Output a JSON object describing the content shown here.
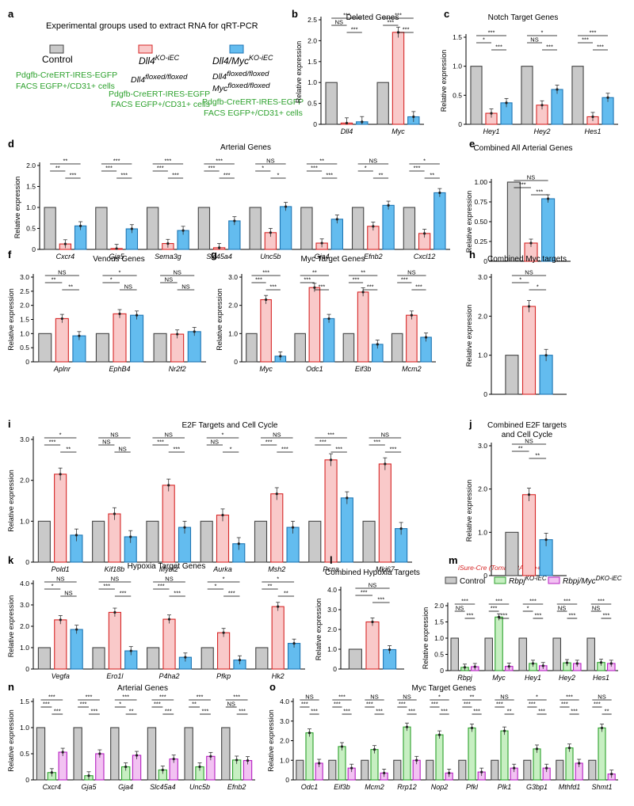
{
  "colors": {
    "control": "#c9c9c9",
    "ko": "#f9c9c9",
    "dko": "#63bcef",
    "rbpj": "#c7efc2",
    "rbpjmyc": "#f2c2f2",
    "stroke_control": "#444444",
    "stroke_ko": "#d62727",
    "stroke_dko": "#1f76b4",
    "stroke_rbpj": "#2ca12c",
    "stroke_rbpjmyc": "#b61fc2",
    "group_text": "#2ca12c",
    "cre_text": "#d62727"
  },
  "panel_a": {
    "letter": "a",
    "title": "Experimental groups used to extract RNA for qRT-PCR",
    "control_label": "Control",
    "control_lines": [
      "Pdgfb-CreERT-IRES-EGFP",
      "FACS EGFP+/CD31+ cells"
    ],
    "ko_label_main": "Dll4",
    "ko_label_sup": "KO-iEC",
    "ko_geno_main": "Dll4",
    "ko_geno_sup": "floxed/floxed",
    "ko_lines": [
      "Pdgfb-CreERT-IRES-EGFP",
      "FACS EGFP+/CD31+ cells"
    ],
    "dko_label_main": "Dll4/Myc",
    "dko_label_sup": "KO-iEC",
    "dko_geno1_main": "Dll4",
    "dko_geno1_sup": "floxed/floxed",
    "dko_geno2_main": "Myc",
    "dko_geno2_sup": "floxed/floxed",
    "dko_lines": [
      "Pdgfb-CreERT-IRES-EGFP",
      "FACS EGFP+/CD31+ cells"
    ]
  },
  "panel_m_legend": {
    "cre_note": "iSure-Cre (Tomato-2A-Cre+)",
    "control": "Control",
    "rbpj_main": "Rbpj",
    "rbpj_sup": "KO-iEC",
    "rbpjmyc_main": "Rbpj/Myc",
    "rbpjmyc_sup": "DKO-iEC"
  },
  "chart_data": [
    {
      "id": "b",
      "letter": "b",
      "type": "bar",
      "title": "Deleted Genes",
      "ylabel": "Relative expression",
      "ylim": [
        0,
        2.5
      ],
      "yticks": [
        "0",
        "0.5",
        "1.0",
        "1.5",
        "2.0",
        "2.5"
      ],
      "groups": "abc",
      "categories": [
        "Dll4",
        "Myc"
      ],
      "series": [
        {
          "name": "Control",
          "values": [
            1.0,
            1.0
          ]
        },
        {
          "name": "Dll4 KO-iEC",
          "values": [
            0.03,
            2.2
          ]
        },
        {
          "name": "Dll4/Myc KO-iEC",
          "values": [
            0.06,
            0.18
          ]
        }
      ],
      "sig": [
        [
          "***",
          "NS",
          "***"
        ],
        [
          "***",
          "***",
          "***"
        ]
      ]
    },
    {
      "id": "c",
      "letter": "c",
      "type": "bar",
      "title": "Notch Target Genes",
      "ylabel": "Relative expression",
      "ylim": [
        0,
        1.5
      ],
      "yticks": [
        "0",
        "0.5",
        "1.0",
        "1.5"
      ],
      "groups": "abc",
      "categories": [
        "Hey1",
        "Hey2",
        "Hes1"
      ],
      "series": [
        {
          "name": "Control",
          "values": [
            1.0,
            1.0,
            1.0
          ]
        },
        {
          "name": "Dll4 KO-iEC",
          "values": [
            0.19,
            0.33,
            0.13
          ]
        },
        {
          "name": "Dll4/Myc KO-iEC",
          "values": [
            0.37,
            0.6,
            0.46
          ]
        }
      ],
      "sig": [
        [
          "***",
          "*",
          "***"
        ],
        [
          "*",
          "NS",
          "***"
        ],
        [
          "***",
          "***",
          "***"
        ]
      ]
    },
    {
      "id": "d",
      "letter": "d",
      "type": "bar",
      "title": "Arterial Genes",
      "ylabel": "Relative expression",
      "ylim": [
        0,
        2.0
      ],
      "yticks": [
        "0",
        "0.5",
        "1.0",
        "1.5",
        "2.0"
      ],
      "groups": "abc",
      "categories": [
        "Cxcr4",
        "Gja5",
        "Sema3g",
        "Slc45a4",
        "Unc5b",
        "Gja4",
        "Efnb2",
        "Cxcl12"
      ],
      "series": [
        {
          "name": "Control",
          "values": [
            1,
            1,
            1,
            1,
            1,
            1,
            1,
            1
          ]
        },
        {
          "name": "Dll4 KO-iEC",
          "values": [
            0.13,
            0.02,
            0.14,
            0.04,
            0.4,
            0.15,
            0.55,
            0.38
          ]
        },
        {
          "name": "Dll4/Myc KO-iEC",
          "values": [
            0.56,
            0.49,
            0.45,
            0.68,
            1.02,
            0.72,
            1.05,
            1.35
          ]
        }
      ],
      "sig": [
        [
          "**",
          "**",
          "***"
        ],
        [
          "***",
          "***",
          "***"
        ],
        [
          "***",
          "***",
          "***"
        ],
        [
          "***",
          "***",
          "***"
        ],
        [
          "NS",
          "*",
          "*"
        ],
        [
          "**",
          "***",
          "***"
        ],
        [
          "NS",
          "*",
          "**"
        ],
        [
          "*",
          "***",
          "**"
        ]
      ]
    },
    {
      "id": "e",
      "letter": "e",
      "type": "bar",
      "title": "Combined All Arterial Genes",
      "ylabel": "Relative expression",
      "ylim": [
        0,
        1.0
      ],
      "yticks": [
        "0",
        "0.25",
        "0.50",
        "0.75",
        "1.00"
      ],
      "groups": "abc",
      "categories": [
        ""
      ],
      "series": [
        {
          "name": "Control",
          "values": [
            1.0
          ]
        },
        {
          "name": "Dll4 KO-iEC",
          "values": [
            0.23
          ]
        },
        {
          "name": "Dll4/Myc KO-iEC",
          "values": [
            0.79
          ]
        }
      ],
      "sig": [
        [
          "NS",
          "***",
          "***"
        ]
      ]
    },
    {
      "id": "f",
      "letter": "f",
      "type": "bar",
      "title": "Venous Genes",
      "ylabel": "Relative expression",
      "ylim": [
        0,
        3.0
      ],
      "yticks": [
        "0",
        "0.5",
        "1.0",
        "1.5",
        "2.0",
        "2.5",
        "3.0"
      ],
      "groups": "abc",
      "categories": [
        "Aplnr",
        "EphB4",
        "Nr2f2"
      ],
      "series": [
        {
          "name": "Control",
          "values": [
            1,
            1,
            1
          ]
        },
        {
          "name": "Dll4 KO-iEC",
          "values": [
            1.53,
            1.7,
            0.98
          ]
        },
        {
          "name": "Dll4/Myc KO-iEC",
          "values": [
            0.92,
            1.65,
            1.07
          ]
        }
      ],
      "sig": [
        [
          "NS",
          "**",
          "**"
        ],
        [
          "*",
          "*",
          "NS"
        ],
        [
          "NS",
          "NS",
          "NS"
        ]
      ]
    },
    {
      "id": "g",
      "letter": "g",
      "type": "bar",
      "title": "Myc Target Genes",
      "ylabel": "Relative expression",
      "ylim": [
        0,
        3.0
      ],
      "yticks": [
        "0",
        "1.0",
        "2.0",
        "3.0"
      ],
      "groups": "abc",
      "categories": [
        "Myc",
        "Odc1",
        "Eif3b",
        "Mcm2"
      ],
      "series": [
        {
          "name": "Control",
          "values": [
            1,
            1,
            1,
            1
          ]
        },
        {
          "name": "Dll4 KO-iEC",
          "values": [
            2.2,
            2.63,
            2.47,
            1.65
          ]
        },
        {
          "name": "Dll4/Myc KO-iEC",
          "values": [
            0.2,
            1.53,
            0.62,
            0.87
          ]
        }
      ],
      "sig": [
        [
          "***",
          "***",
          "***"
        ],
        [
          "**",
          "***",
          "***"
        ],
        [
          "**",
          "***",
          "***"
        ],
        [
          "NS",
          "***",
          "***"
        ]
      ]
    },
    {
      "id": "h",
      "letter": "h",
      "type": "bar",
      "title": "Combined Myc targets",
      "ylabel": "Relative expression",
      "ylim": [
        0,
        3.0
      ],
      "yticks": [
        "0",
        "1.0",
        "2.0",
        "3.0"
      ],
      "groups": "abc",
      "categories": [
        ""
      ],
      "series": [
        {
          "name": "Control",
          "values": [
            1.0
          ]
        },
        {
          "name": "Dll4 KO-iEC",
          "values": [
            2.25
          ]
        },
        {
          "name": "Dll4/Myc KO-iEC",
          "values": [
            1.0
          ]
        }
      ],
      "sig": [
        [
          "NS",
          "*",
          "*"
        ]
      ]
    },
    {
      "id": "i",
      "letter": "i",
      "type": "bar",
      "title": "E2F Targets and Cell Cycle",
      "ylabel": "Relative expression",
      "ylim": [
        0,
        3.0
      ],
      "yticks": [
        "0",
        "1.0",
        "2.0",
        "3.0"
      ],
      "groups": "abc",
      "categories": [
        "Pold1",
        "Kif18b",
        "Mybl2",
        "Aurka",
        "Msh2",
        "Pcna",
        "Mki67"
      ],
      "series": [
        {
          "name": "Control",
          "values": [
            1,
            1,
            1,
            1,
            1,
            1,
            1
          ]
        },
        {
          "name": "Dll4 KO-iEC",
          "values": [
            2.15,
            1.18,
            1.88,
            1.15,
            1.67,
            2.5,
            2.4
          ]
        },
        {
          "name": "Dll4/Myc KO-iEC",
          "values": [
            0.66,
            0.62,
            0.85,
            0.45,
            0.85,
            1.57,
            0.82
          ]
        }
      ],
      "sig": [
        [
          "*",
          "***",
          "**"
        ],
        [
          "NS",
          "NS",
          "NS"
        ],
        [
          "NS",
          "***",
          "***"
        ],
        [
          "*",
          "NS",
          "*"
        ],
        [
          "NS",
          "***",
          "***"
        ],
        [
          "***",
          "***",
          "***"
        ],
        [
          "NS",
          "***",
          "***"
        ]
      ]
    },
    {
      "id": "j",
      "letter": "j",
      "type": "bar",
      "title": "Combined E2F targets and Cell Cycle",
      "title_lines": [
        "Combined E2F targets",
        "and Cell Cycle"
      ],
      "ylabel": "Relative expression",
      "ylim": [
        0,
        3.0
      ],
      "yticks": [
        "0",
        "1.0",
        "2.0",
        "3.0"
      ],
      "groups": "abc",
      "categories": [
        ""
      ],
      "series": [
        {
          "name": "Control",
          "values": [
            1.0
          ]
        },
        {
          "name": "Dll4 KO-iEC",
          "values": [
            1.87
          ]
        },
        {
          "name": "Dll4/Myc KO-iEC",
          "values": [
            0.83
          ]
        }
      ],
      "sig": [
        [
          "NS",
          "**",
          "**"
        ]
      ]
    },
    {
      "id": "k",
      "letter": "k",
      "type": "bar",
      "title": "Hypoxia Target Genes",
      "ylabel": "Relative expression",
      "ylim": [
        0,
        4.0
      ],
      "yticks": [
        "0",
        "1.0",
        "2.0",
        "3.0",
        "4.0"
      ],
      "groups": "abc",
      "categories": [
        "Vegfa",
        "Ero1l",
        "P4ha2",
        "Pfkp",
        "Hk2"
      ],
      "series": [
        {
          "name": "Control",
          "values": [
            1,
            1,
            1,
            1,
            1
          ]
        },
        {
          "name": "Dll4 KO-iEC",
          "values": [
            2.3,
            2.65,
            2.33,
            1.7,
            2.92
          ]
        },
        {
          "name": "Dll4/Myc KO-iEC",
          "values": [
            1.85,
            0.85,
            0.55,
            0.42,
            1.2
          ]
        }
      ],
      "sig": [
        [
          "NS",
          "*",
          "NS"
        ],
        [
          "NS",
          "***",
          "***"
        ],
        [
          "NS",
          "***",
          "***"
        ],
        [
          "*",
          "*",
          "***"
        ],
        [
          "*",
          "**",
          "**"
        ]
      ]
    },
    {
      "id": "l",
      "letter": "l",
      "type": "bar",
      "title": "Combined Hypoxia Targets",
      "ylabel": "Relative expression",
      "ylim": [
        0,
        4.0
      ],
      "yticks": [
        "0",
        "1.0",
        "2.0",
        "3.0",
        "4.0"
      ],
      "groups": "abc",
      "categories": [
        ""
      ],
      "series": [
        {
          "name": "Control",
          "values": [
            1.0
          ]
        },
        {
          "name": "Dll4 KO-iEC",
          "values": [
            2.38
          ]
        },
        {
          "name": "Dll4/Myc KO-iEC",
          "values": [
            0.98
          ]
        }
      ],
      "sig": [
        [
          "NS",
          "***",
          "***"
        ]
      ]
    },
    {
      "id": "m",
      "letter": "m",
      "type": "bar",
      "title": "",
      "ylabel": "Relative expression",
      "ylim": [
        0,
        2.0
      ],
      "yticks": [
        "0",
        "0.5",
        "1.0",
        "1.5",
        "2.0"
      ],
      "groups": "ade",
      "categories": [
        "Rbpj",
        "Myc",
        "Hey1",
        "Hey2",
        "Hes1"
      ],
      "series": [
        {
          "name": "Control",
          "values": [
            1,
            1,
            1,
            1,
            1
          ]
        },
        {
          "name": "Rbpj KO-iEC",
          "values": [
            0.1,
            1.65,
            0.22,
            0.24,
            0.25
          ]
        },
        {
          "name": "Rbpj/Myc DKO-iEC",
          "values": [
            0.12,
            0.13,
            0.15,
            0.22,
            0.22
          ]
        }
      ],
      "sig": [
        [
          "***",
          "NS",
          "***"
        ],
        [
          "***",
          "***",
          "***"
        ],
        [
          "***",
          "*",
          "***"
        ],
        [
          "***",
          "NS",
          "***"
        ],
        [
          "***",
          "NS",
          "***"
        ]
      ]
    },
    {
      "id": "n",
      "letter": "n",
      "type": "bar",
      "title": "Arterial Genes",
      "ylabel": "Relative expression",
      "ylim": [
        0,
        1.5
      ],
      "yticks": [
        "0",
        "0.5",
        "1.0",
        "1.5"
      ],
      "groups": "ade",
      "categories": [
        "Cxcr4",
        "Gja5",
        "Gja4",
        "Slc45a4",
        "Unc5b",
        "Efnb2"
      ],
      "series": [
        {
          "name": "Control",
          "values": [
            1,
            1,
            1,
            1,
            1,
            1
          ]
        },
        {
          "name": "Rbpj KO-iEC",
          "values": [
            0.14,
            0.08,
            0.25,
            0.19,
            0.25,
            0.38
          ]
        },
        {
          "name": "Rbpj/Myc DKO-iEC",
          "values": [
            0.53,
            0.5,
            0.47,
            0.4,
            0.45,
            0.37
          ]
        }
      ],
      "sig": [
        [
          "***",
          "***",
          "***"
        ],
        [
          "***",
          "***",
          "***"
        ],
        [
          "***",
          "*",
          "**"
        ],
        [
          "***",
          "***",
          "***"
        ],
        [
          "***",
          "**",
          "***"
        ],
        [
          "***",
          "NS",
          "***"
        ]
      ]
    },
    {
      "id": "o",
      "letter": "o",
      "type": "bar",
      "title": "Myc Target Genes",
      "ylabel": "Relative expression",
      "ylim": [
        0,
        4.0
      ],
      "yticks": [
        "0",
        "1.0",
        "2.0",
        "3.0",
        "4.0"
      ],
      "groups": "ade",
      "categories": [
        "Odc1",
        "Eif3b",
        "Mcm2",
        "Rrp12",
        "Nop2",
        "Pfkl",
        "Plk1",
        "G3bp1",
        "Mthfd1",
        "Shmt1"
      ],
      "series": [
        {
          "name": "Control",
          "values": [
            1,
            1,
            1,
            1,
            1,
            1,
            1,
            1,
            1,
            1
          ]
        },
        {
          "name": "Rbpj KO-iEC",
          "values": [
            2.4,
            1.7,
            1.55,
            2.7,
            2.3,
            2.65,
            2.5,
            1.58,
            1.63,
            2.65
          ]
        },
        {
          "name": "Rbpj/Myc DKO-iEC",
          "values": [
            0.85,
            0.6,
            0.35,
            1.0,
            0.35,
            0.4,
            0.6,
            0.6,
            0.85,
            0.3
          ]
        }
      ],
      "sig": [
        [
          "NS",
          "***",
          "***"
        ],
        [
          "***",
          "***",
          "***"
        ],
        [
          "NS",
          "***",
          "***"
        ],
        [
          "NS",
          "***",
          "***"
        ],
        [
          "*",
          "***",
          "***"
        ],
        [
          "**",
          "***",
          "***"
        ],
        [
          "NS",
          "***",
          "**"
        ],
        [
          "*",
          "***",
          "***"
        ],
        [
          "***",
          "***",
          "***"
        ],
        [
          "NS",
          "***",
          "**"
        ]
      ]
    }
  ]
}
